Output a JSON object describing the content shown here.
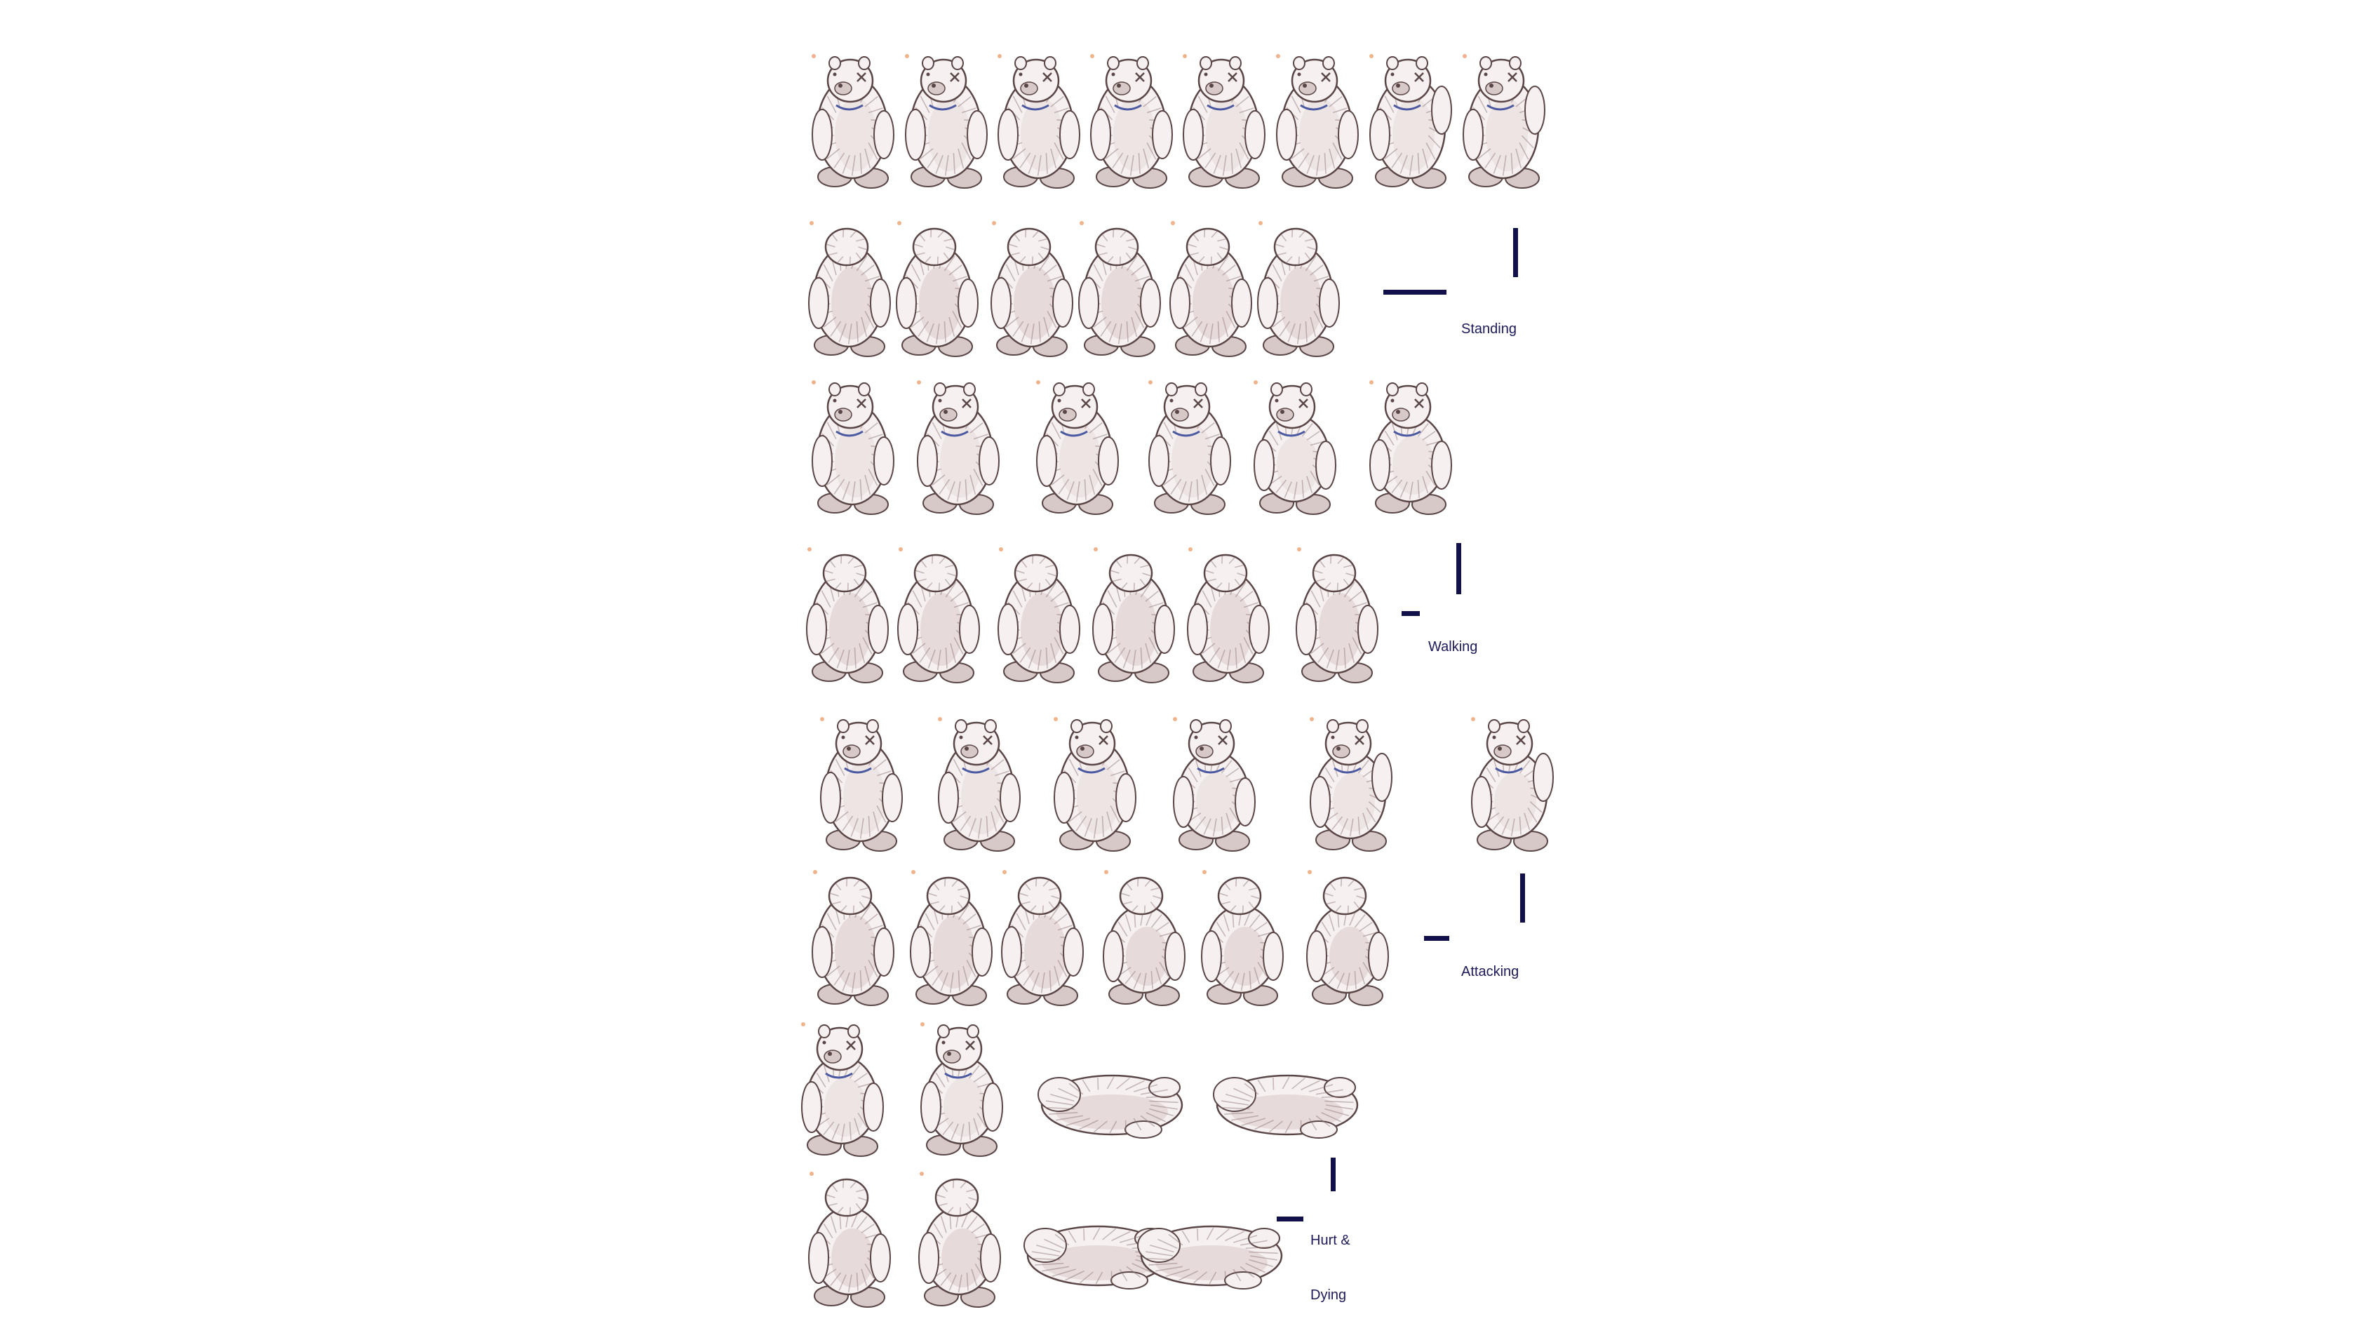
{
  "sheet": {
    "colors": {
      "background": "#ffffff",
      "fur_light": "#f6f0f0",
      "fur_mid": "#d8c9c9",
      "fur_shadow": "#8c7373",
      "outline": "#5a4646",
      "collar": "#4b5aa0",
      "marker": "#f0b48c",
      "label_bar": "#12104a",
      "label_text": "#1c1a5a"
    },
    "sections": [
      {
        "key": "standing",
        "label_lines": [
          "Standing"
        ],
        "rows": [
          {
            "view": "front",
            "frames": [
              "front-idle",
              "front-idle",
              "front-idle",
              "front-idle",
              "front-idle",
              "front-idle",
              "front-paw-raise",
              "front-paw-raise"
            ]
          },
          {
            "view": "back",
            "frames": [
              "back-idle",
              "back-idle",
              "back-idle",
              "back-idle",
              "back-idle",
              "back-idle"
            ]
          }
        ]
      },
      {
        "key": "walking",
        "label_lines": [
          "Walking"
        ],
        "rows": [
          {
            "view": "front",
            "frames": [
              "front-step",
              "front-step",
              "front-step",
              "front-step",
              "front-crouch",
              "front-crouch"
            ]
          },
          {
            "view": "back",
            "frames": [
              "back-step",
              "back-step",
              "back-step",
              "back-step",
              "back-step",
              "back-step"
            ]
          }
        ]
      },
      {
        "key": "attacking",
        "label_lines": [
          "Attacking"
        ],
        "rows": [
          {
            "view": "front",
            "frames": [
              "front-wind-up",
              "front-wind-up",
              "front-wind-up",
              "front-lunge",
              "front-swipe",
              "front-swipe"
            ]
          },
          {
            "view": "back",
            "frames": [
              "back-wind-up",
              "back-wind-up",
              "back-wind-up",
              "back-lunge",
              "back-lunge",
              "back-lunge"
            ]
          }
        ]
      },
      {
        "key": "hurt-dying",
        "label_lines": [
          "Hurt &",
          "Dying"
        ],
        "rows": [
          {
            "view": "front",
            "frames": [
              "front-hurt",
              "front-hurt",
              "front-fallen",
              "front-fallen"
            ]
          },
          {
            "view": "back",
            "frames": [
              "back-hurt",
              "back-hurt",
              "back-fallen",
              "back-fallen"
            ]
          }
        ]
      }
    ]
  }
}
